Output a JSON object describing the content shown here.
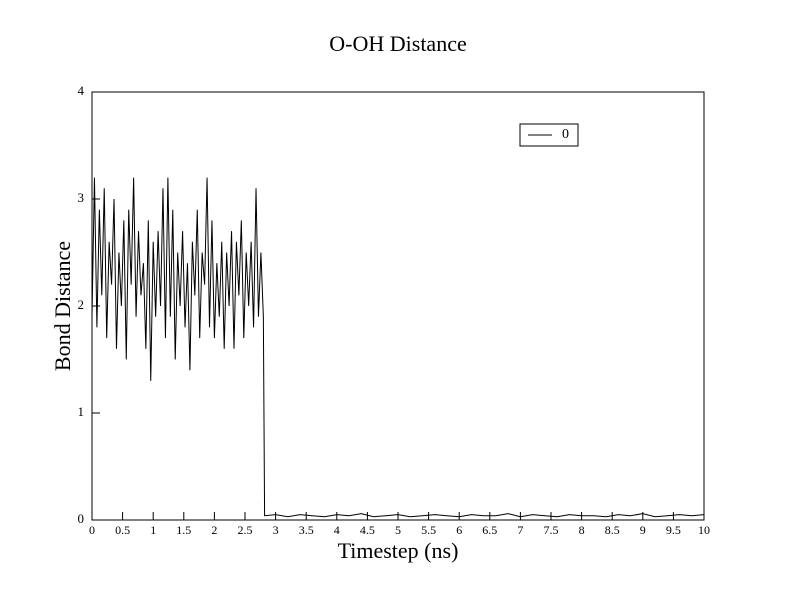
{
  "chart_data": {
    "type": "line",
    "title": "O-OH Distance",
    "x_label": "Timestep (ns)",
    "y_label": "Bond Distance",
    "x": [
      0,
      0.04,
      0.08,
      0.12,
      0.16,
      0.2,
      0.24,
      0.28,
      0.32,
      0.36,
      0.4,
      0.44,
      0.48,
      0.52,
      0.56,
      0.6,
      0.64,
      0.68,
      0.72,
      0.76,
      0.8,
      0.84,
      0.88,
      0.92,
      0.96,
      1.0,
      1.04,
      1.08,
      1.12,
      1.16,
      1.2,
      1.24,
      1.28,
      1.32,
      1.36,
      1.4,
      1.44,
      1.48,
      1.52,
      1.56,
      1.6,
      1.64,
      1.68,
      1.72,
      1.76,
      1.8,
      1.84,
      1.88,
      1.92,
      1.96,
      2.0,
      2.04,
      2.08,
      2.12,
      2.16,
      2.2,
      2.24,
      2.28,
      2.32,
      2.36,
      2.4,
      2.44,
      2.48,
      2.52,
      2.56,
      2.6,
      2.64,
      2.68,
      2.72,
      2.76,
      2.8,
      2.82,
      3.0,
      3.2,
      3.4,
      3.6,
      3.8,
      4.0,
      4.2,
      4.4,
      4.6,
      4.8,
      5.0,
      5.2,
      5.4,
      5.6,
      5.8,
      6.0,
      6.2,
      6.4,
      6.6,
      6.8,
      7.0,
      7.2,
      7.4,
      7.6,
      7.8,
      8.0,
      8.2,
      8.4,
      8.6,
      8.8,
      9.0,
      9.2,
      9.4,
      9.6,
      9.8,
      10.0
    ],
    "series": [
      {
        "name": "0",
        "color": "#000000",
        "values": [
          1.9,
          3.2,
          1.8,
          2.9,
          2.1,
          3.1,
          1.7,
          2.6,
          2.2,
          3.0,
          1.6,
          2.5,
          2.0,
          2.8,
          1.5,
          2.9,
          2.2,
          3.2,
          1.9,
          2.7,
          2.1,
          2.4,
          1.6,
          2.8,
          1.3,
          2.6,
          1.9,
          2.7,
          2.0,
          3.1,
          1.7,
          3.2,
          1.9,
          2.9,
          1.5,
          2.5,
          2.0,
          2.7,
          1.8,
          2.4,
          1.4,
          2.6,
          2.1,
          2.9,
          1.7,
          2.5,
          2.2,
          3.2,
          1.8,
          2.8,
          1.7,
          2.4,
          1.9,
          2.6,
          1.6,
          2.5,
          2.0,
          2.7,
          1.6,
          2.6,
          2.1,
          2.8,
          1.7,
          2.5,
          2.0,
          2.6,
          1.8,
          3.1,
          1.9,
          2.5,
          1.9,
          0.04,
          0.05,
          0.03,
          0.05,
          0.04,
          0.03,
          0.05,
          0.04,
          0.06,
          0.03,
          0.04,
          0.05,
          0.03,
          0.04,
          0.05,
          0.04,
          0.03,
          0.05,
          0.04,
          0.04,
          0.06,
          0.03,
          0.05,
          0.04,
          0.03,
          0.05,
          0.04,
          0.04,
          0.03,
          0.05,
          0.04,
          0.06,
          0.03,
          0.04,
          0.05,
          0.04,
          0.05
        ]
      }
    ],
    "xlim": [
      0,
      10
    ],
    "xticks": [
      0,
      0.5,
      1,
      1.5,
      2,
      2.5,
      3,
      3.5,
      4,
      4.5,
      5,
      5.5,
      6,
      6.5,
      7,
      7.5,
      8,
      8.5,
      9,
      9.5,
      10
    ],
    "ylim": [
      0,
      4
    ],
    "yticks": [
      0,
      1,
      2,
      3,
      4
    ],
    "grid": false,
    "legend": "upper-right"
  }
}
